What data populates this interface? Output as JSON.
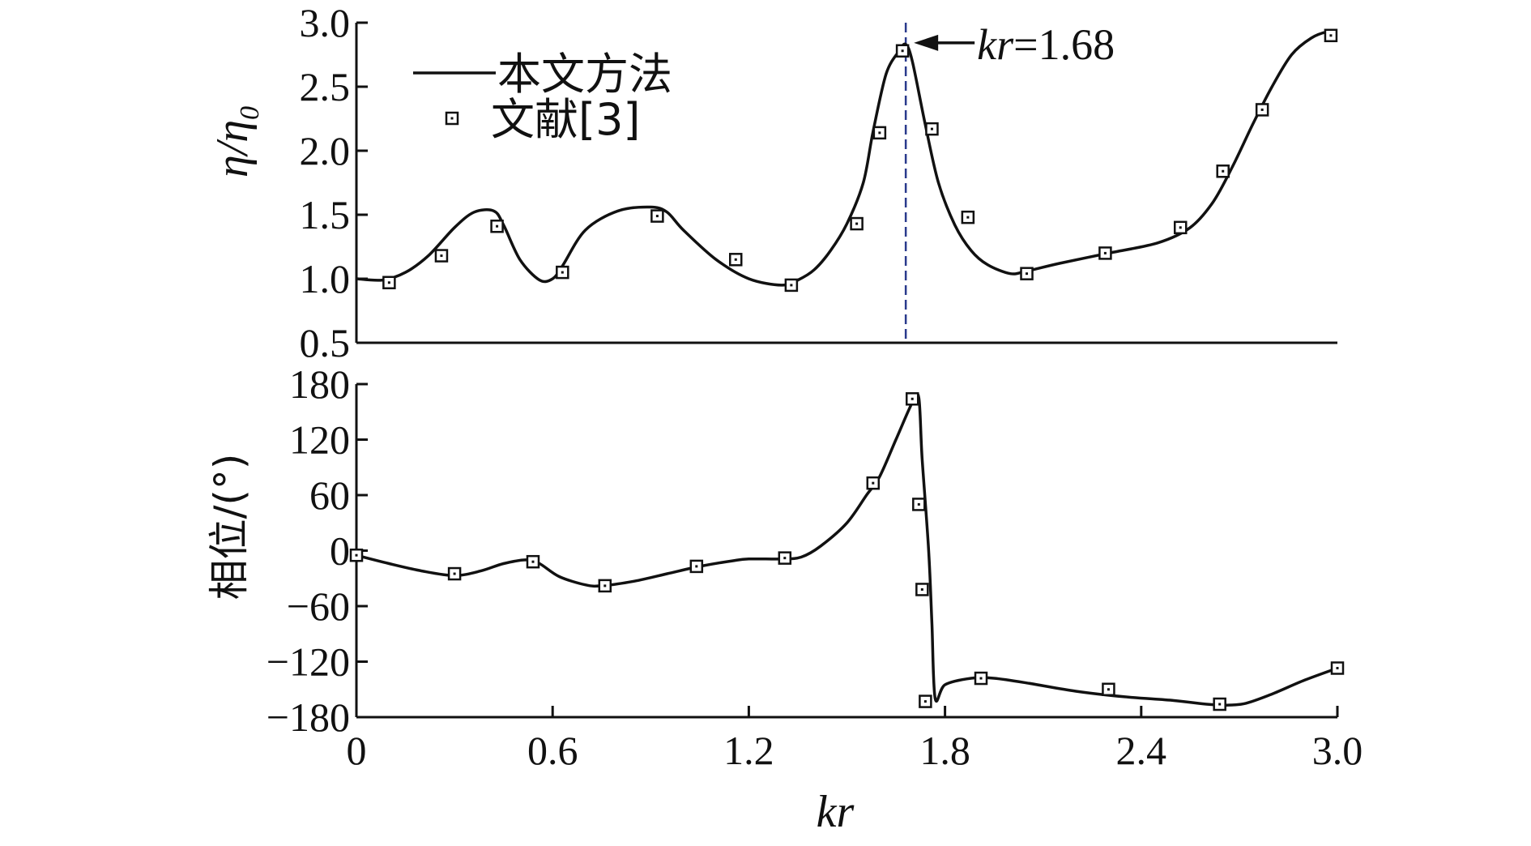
{
  "chart_data": [
    {
      "type": "line",
      "panel": "top",
      "ylabel_main": "η/η",
      "ylabel_sub": "0",
      "xlabel": "",
      "xlim": [
        0,
        3.0
      ],
      "ylim": [
        0.5,
        3.0
      ],
      "yticks": [
        "0.5",
        "1.0",
        "1.5",
        "2.0",
        "2.5",
        "3.0"
      ],
      "ytick_values": [
        0.5,
        1.0,
        1.5,
        2.0,
        2.5,
        3.0
      ],
      "legend_placement": "top-left",
      "series": [
        {
          "name": "本文方法",
          "style": "line",
          "x": [
            0,
            0.08,
            0.15,
            0.22,
            0.3,
            0.36,
            0.42,
            0.45,
            0.5,
            0.56,
            0.6,
            0.63,
            0.7,
            0.8,
            0.9,
            0.95,
            1.0,
            1.1,
            1.2,
            1.3,
            1.35,
            1.4,
            1.45,
            1.5,
            1.55,
            1.58,
            1.62,
            1.66,
            1.68,
            1.7,
            1.74,
            1.78,
            1.83,
            1.88,
            1.93,
            2.0,
            2.05,
            2.15,
            2.3,
            2.45,
            2.55,
            2.62,
            2.68,
            2.74,
            2.8,
            2.86,
            2.92,
            2.97,
            3.0
          ],
          "y": [
            1.0,
            0.99,
            1.05,
            1.18,
            1.4,
            1.52,
            1.53,
            1.42,
            1.15,
            0.99,
            1.0,
            1.1,
            1.38,
            1.53,
            1.56,
            1.52,
            1.38,
            1.15,
            1.0,
            0.95,
            0.99,
            1.07,
            1.22,
            1.43,
            1.75,
            2.15,
            2.6,
            2.78,
            2.83,
            2.7,
            2.2,
            1.75,
            1.42,
            1.22,
            1.11,
            1.04,
            1.06,
            1.12,
            1.2,
            1.28,
            1.4,
            1.6,
            1.88,
            2.2,
            2.5,
            2.75,
            2.88,
            2.93,
            2.93
          ]
        },
        {
          "name": "文献[3]",
          "style": "marker",
          "x": [
            0.1,
            0.26,
            0.43,
            0.63,
            0.92,
            1.16,
            1.33,
            1.53,
            1.6,
            1.67,
            1.76,
            1.87,
            2.05,
            2.29,
            2.52,
            2.65,
            2.77,
            2.98
          ],
          "y": [
            0.97,
            1.18,
            1.41,
            1.05,
            1.49,
            1.15,
            0.95,
            1.43,
            2.14,
            2.78,
            2.17,
            1.48,
            1.04,
            1.2,
            1.4,
            1.84,
            2.32,
            2.9
          ]
        }
      ],
      "annotation": {
        "text_var": "kr",
        "text_value": "=1.68",
        "x": 1.68,
        "y": 2.83,
        "vline_x": 1.68,
        "vline_color": "#2a3a8c"
      }
    },
    {
      "type": "line",
      "panel": "bottom",
      "ylabel": "相位/(°)",
      "xlabel": "kr",
      "xlim": [
        0,
        3.0
      ],
      "ylim": [
        -180,
        180
      ],
      "xticks": [
        "0",
        "0.6",
        "1.2",
        "1.8",
        "2.4",
        "3.0"
      ],
      "xtick_values": [
        0,
        0.6,
        1.2,
        1.8,
        2.4,
        3.0
      ],
      "yticks": [
        "−180",
        "−120",
        "−60",
        "0",
        "60",
        "120",
        "180"
      ],
      "ytick_values": [
        -180,
        -120,
        -60,
        0,
        60,
        120,
        180
      ],
      "series": [
        {
          "name": "本文方法",
          "style": "line",
          "x": [
            0,
            0.1,
            0.2,
            0.3,
            0.38,
            0.45,
            0.52,
            0.56,
            0.62,
            0.7,
            0.75,
            0.85,
            0.95,
            1.05,
            1.15,
            1.2,
            1.3,
            1.36,
            1.42,
            1.5,
            1.56,
            1.6,
            1.65,
            1.7,
            1.72,
            1.73,
            1.75,
            1.76,
            1.77,
            1.8,
            1.88,
            1.95,
            2.05,
            2.2,
            2.35,
            2.5,
            2.6,
            2.66,
            2.72,
            2.8,
            2.9,
            3.0
          ],
          "y": [
            -5,
            -14,
            -22,
            -27,
            -22,
            -14,
            -10,
            -14,
            -28,
            -37,
            -38,
            -33,
            -25,
            -17,
            -11,
            -9,
            -9,
            -7,
            5,
            30,
            60,
            80,
            120,
            160,
            165,
            100,
            0,
            -80,
            -160,
            -145,
            -138,
            -138,
            -143,
            -152,
            -158,
            -162,
            -166,
            -167,
            -165,
            -155,
            -140,
            -127
          ]
        },
        {
          "name": "文献[3]",
          "style": "marker",
          "x": [
            0.0,
            0.3,
            0.54,
            0.76,
            1.04,
            1.31,
            1.58,
            1.7,
            1.72,
            1.73,
            1.74,
            1.91,
            2.3,
            2.64,
            3.0
          ],
          "y": [
            -5,
            -25,
            -12,
            -38,
            -17,
            -8,
            73,
            164,
            50,
            -42,
            -163,
            -138,
            -150,
            -166,
            -127
          ]
        }
      ]
    }
  ],
  "legend": {
    "line_label": "本文方法",
    "marker_label": "文献[3]"
  }
}
